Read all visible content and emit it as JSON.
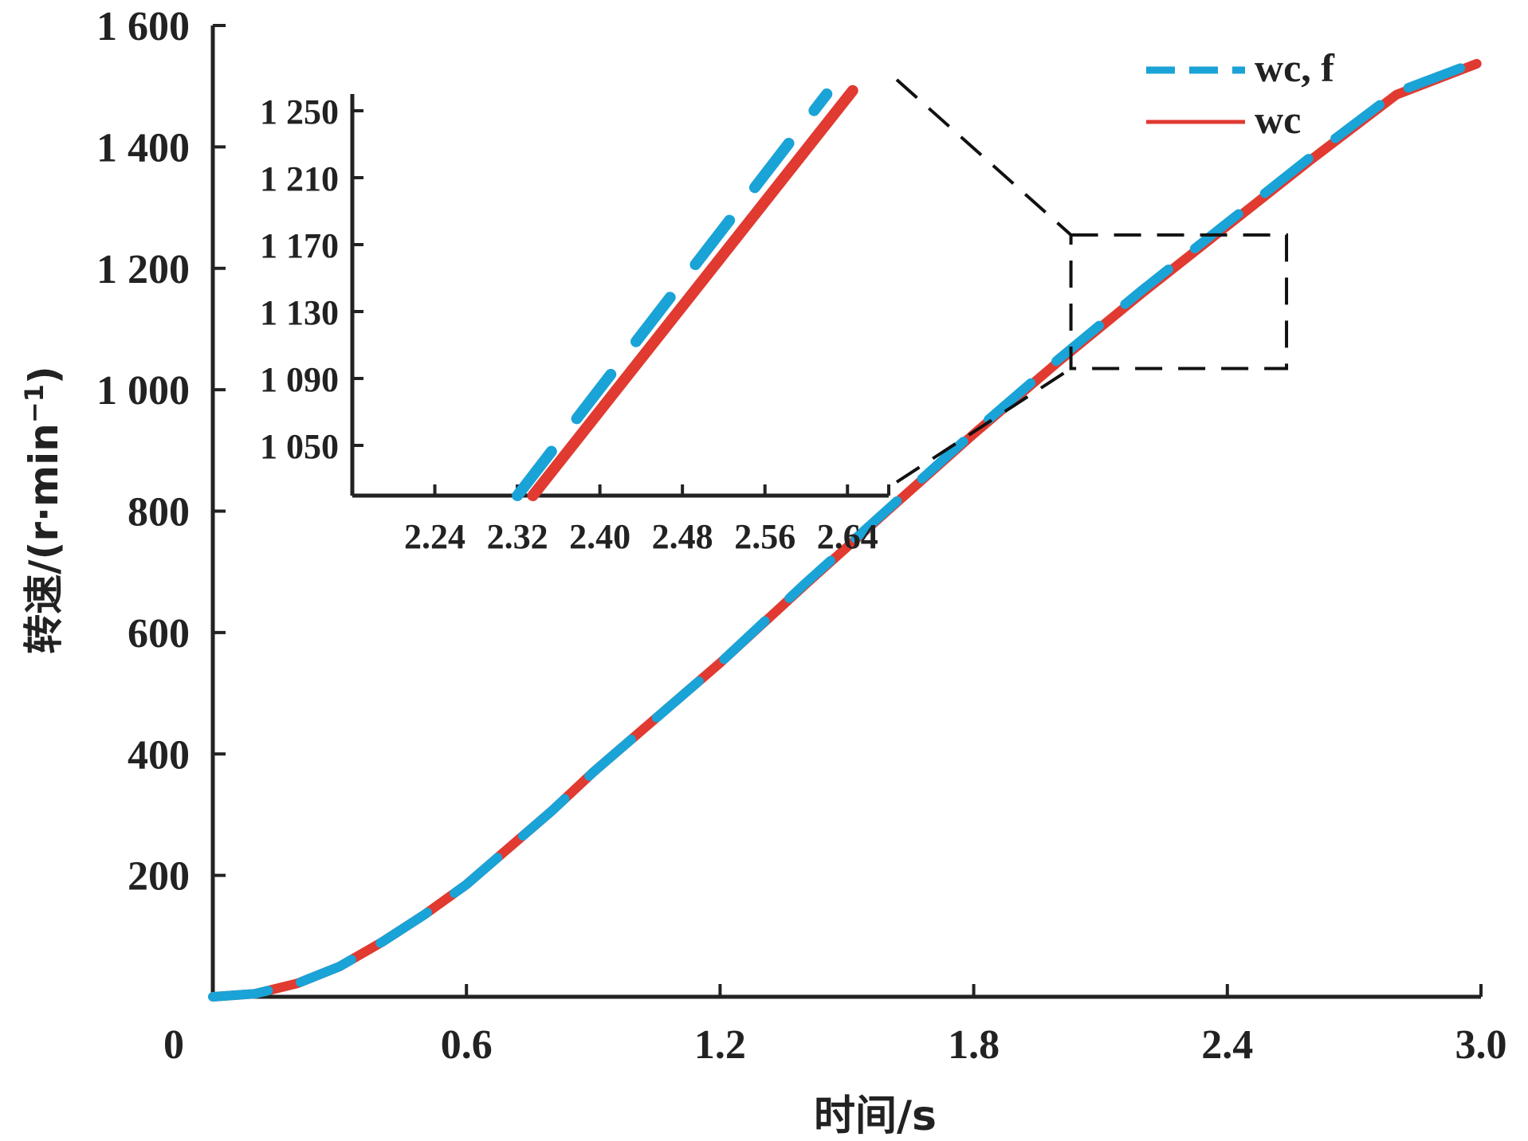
{
  "colors": {
    "wc_f": "#1aa3d6",
    "wc": "#e03a31",
    "axis": "#222222",
    "zoom_box": "#111111"
  },
  "chart_data": [
    {
      "type": "line",
      "xlabel": "时间/s",
      "ylabel": "转速/(r·min",
      "ylabel_superscript": "−1",
      "ylabel_close": ")",
      "xlim": [
        0,
        3.0
      ],
      "ylim": [
        0,
        1600
      ],
      "x_ticks": [
        0,
        0.6,
        1.2,
        1.8,
        2.4,
        3.0
      ],
      "x_tick_labels": [
        "0",
        "0.6",
        "1.2",
        "1.8",
        "2.4",
        "3.0"
      ],
      "y_ticks": [
        200,
        400,
        600,
        800,
        1000,
        1200,
        1400,
        1600
      ],
      "y_tick_labels": [
        "200",
        "400",
        "600",
        "800",
        "1 000",
        "1 200",
        "1 400",
        "1 600"
      ],
      "grid": false,
      "legend_position": "top-right",
      "series": [
        {
          "name": "wc, f",
          "style": "dashed",
          "color": "#1aa3d6",
          "x": [
            0,
            0.1,
            0.2,
            0.3,
            0.4,
            0.5,
            0.6,
            0.7,
            0.8,
            0.9,
            1.0,
            1.1,
            1.2,
            1.4,
            1.6,
            1.8,
            2.0,
            2.2,
            2.4,
            2.6,
            2.8,
            2.99
          ],
          "y": [
            0,
            5,
            22,
            50,
            90,
            135,
            185,
            245,
            305,
            370,
            430,
            490,
            550,
            680,
            805,
            930,
            1050,
            1165,
            1275,
            1385,
            1490,
            1540
          ]
        },
        {
          "name": "wc",
          "style": "solid",
          "color": "#e03a31",
          "x": [
            0,
            0.1,
            0.2,
            0.3,
            0.4,
            0.5,
            0.6,
            0.7,
            0.8,
            0.9,
            1.0,
            1.1,
            1.2,
            1.4,
            1.6,
            1.8,
            2.0,
            2.2,
            2.4,
            2.6,
            2.8,
            2.99
          ],
          "y": [
            0,
            5,
            22,
            50,
            90,
            135,
            185,
            245,
            305,
            370,
            430,
            490,
            550,
            678,
            803,
            927,
            1046,
            1160,
            1270,
            1380,
            1486,
            1537
          ]
        }
      ],
      "zoom_region": {
        "x": [
          2.03,
          2.54
        ],
        "y": [
          1035,
          1255
        ]
      }
    },
    {
      "type": "line",
      "inset": true,
      "xlim": [
        2.16,
        2.68
      ],
      "ylim": [
        1020,
        1260
      ],
      "x_ticks": [
        2.24,
        2.32,
        2.4,
        2.48,
        2.56,
        2.64
      ],
      "x_tick_labels": [
        "2.24",
        "2.32",
        "2.40",
        "2.48",
        "2.56",
        "2.64"
      ],
      "y_ticks": [
        1050,
        1090,
        1130,
        1170,
        1210,
        1250
      ],
      "y_tick_labels": [
        "1 050",
        "1 090",
        "1 130",
        "1 170",
        "1 210",
        "1 250"
      ],
      "series": [
        {
          "name": "wc, f",
          "style": "dashed",
          "color": "#1aa3d6",
          "x": [
            2.32,
            2.62
          ],
          "y": [
            1020,
            1260
          ]
        },
        {
          "name": "wc",
          "style": "solid",
          "color": "#e03a31",
          "x": [
            2.335,
            2.645
          ],
          "y": [
            1020,
            1262
          ]
        }
      ]
    }
  ],
  "legend": {
    "entries": [
      {
        "label": "wc, f",
        "style": "dashed",
        "color": "#1aa3d6"
      },
      {
        "label": "wc",
        "style": "solid",
        "color": "#e03a31"
      }
    ]
  }
}
